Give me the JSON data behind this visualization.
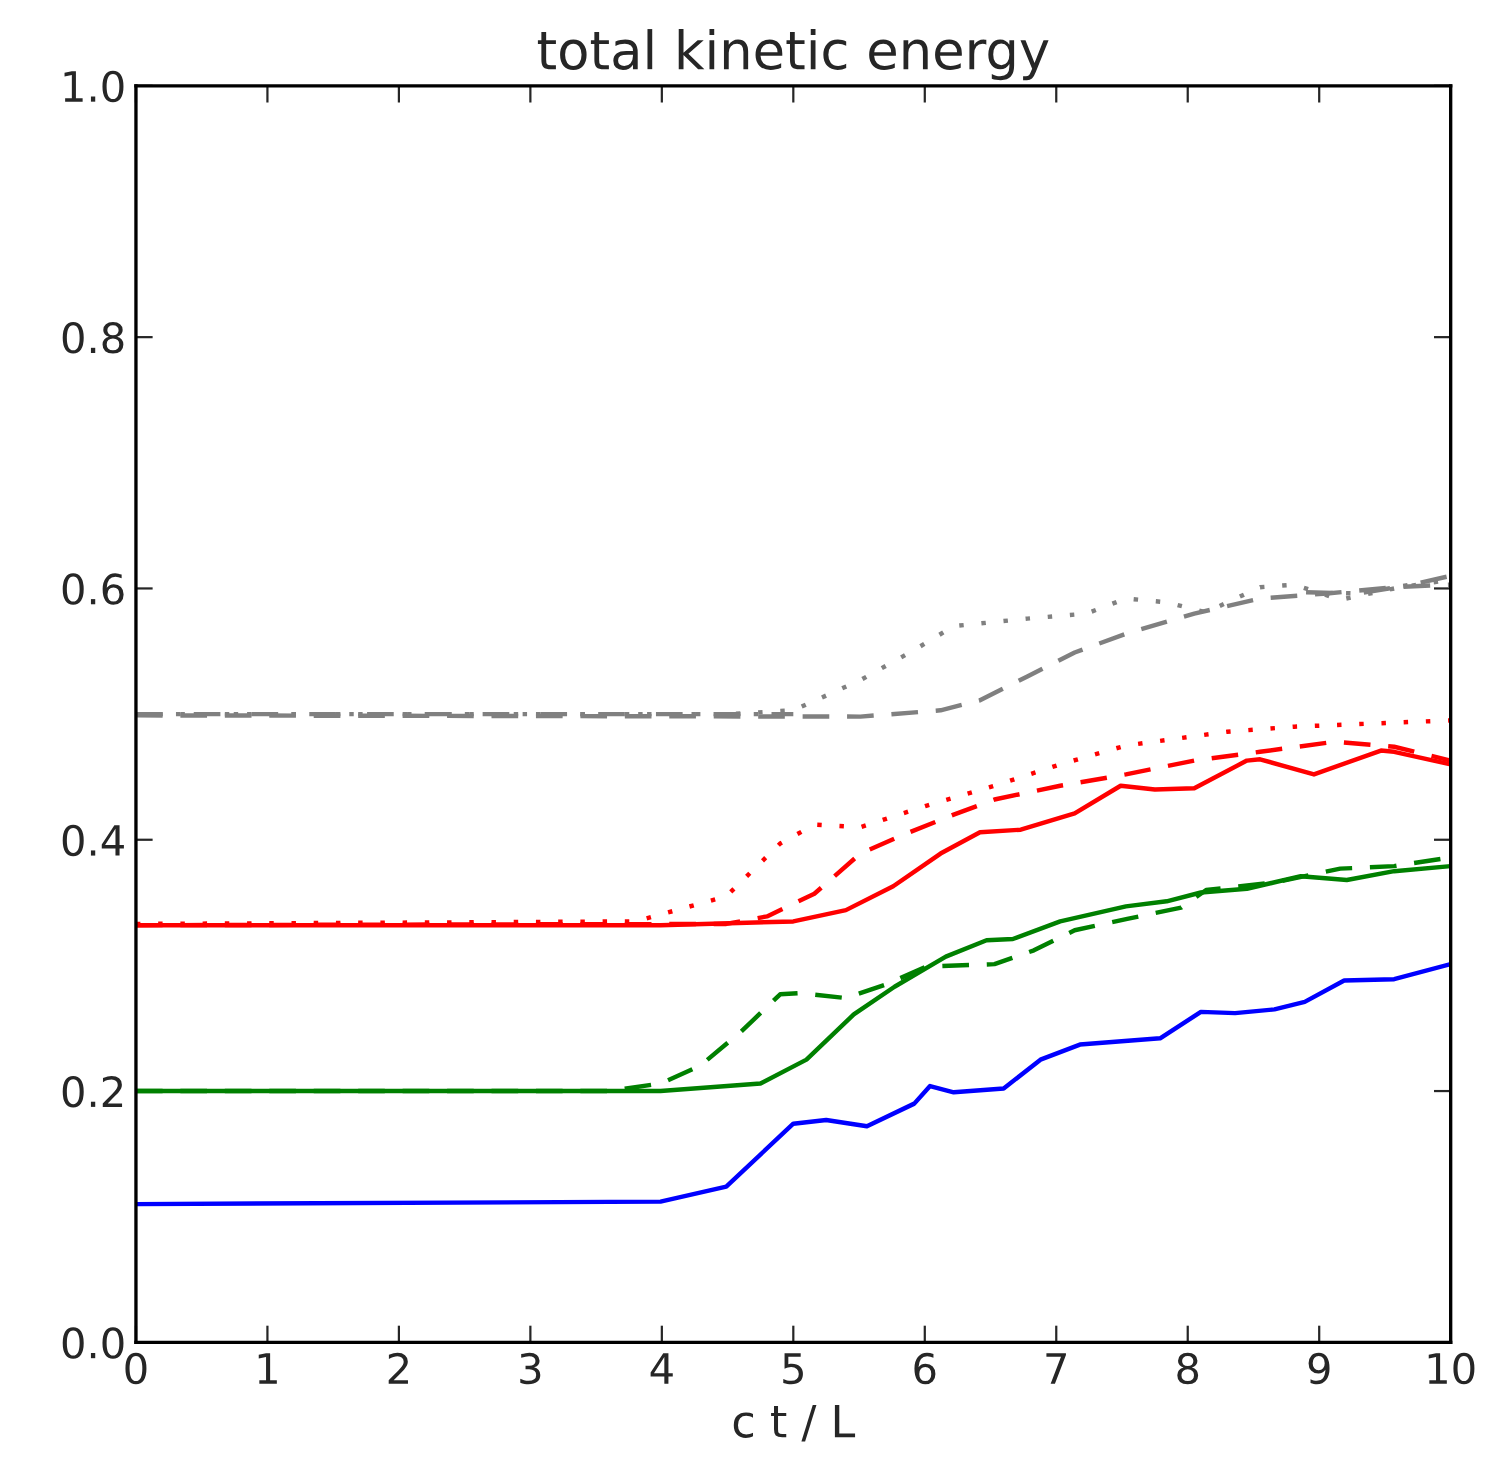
{
  "chart_data": {
    "type": "line",
    "title": "total kinetic energy",
    "xlabel": "c t / L",
    "xlim": [
      0,
      10
    ],
    "ylim": [
      0,
      1.0
    ],
    "xticks": [
      0,
      1,
      2,
      3,
      4,
      5,
      6,
      7,
      8,
      9,
      10
    ],
    "yticks": [
      {
        "value": 0,
        "label": "0.0"
      },
      {
        "value": 0.2,
        "label": "0.2"
      },
      {
        "value": 0.4,
        "label": "0.4"
      },
      {
        "value": 0.6,
        "label": "0.6"
      },
      {
        "value": 0.8,
        "label": "0.8"
      },
      {
        "value": 1.0,
        "label": "1.0"
      }
    ],
    "grid": false,
    "legend": false,
    "series": [
      {
        "color": "#0000ff",
        "line_style": "solid",
        "x": [
          0,
          3.99,
          4.49,
          5.0,
          5.25,
          5.56,
          5.92,
          6.04,
          6.22,
          6.6,
          6.88,
          7.18,
          7.79,
          8.1,
          8.36,
          8.66,
          8.89,
          9.19,
          9.57,
          10
        ],
        "values": [
          0.11,
          0.112,
          0.124,
          0.174,
          0.177,
          0.172,
          0.19,
          0.204,
          0.199,
          0.202,
          0.225,
          0.237,
          0.242,
          0.263,
          0.262,
          0.265,
          0.271,
          0.288,
          0.289,
          0.301
        ]
      },
      {
        "color": "#008000",
        "line_style": "solid",
        "x": [
          0,
          3.99,
          4.75,
          5.1,
          5.46,
          5.77,
          6.16,
          6.47,
          6.67,
          7.03,
          7.53,
          7.84,
          8.1,
          8.45,
          8.86,
          9.21,
          9.57,
          10
        ],
        "values": [
          0.2,
          0.2,
          0.206,
          0.225,
          0.261,
          0.283,
          0.307,
          0.32,
          0.321,
          0.335,
          0.347,
          0.351,
          0.358,
          0.361,
          0.371,
          0.368,
          0.375,
          0.379
        ]
      },
      {
        "color": "#008000",
        "line_style": "dashed",
        "x": [
          0,
          3.6,
          3.99,
          4.29,
          4.6,
          4.9,
          5.05,
          5.4,
          5.71,
          6.01,
          6.53,
          6.83,
          7.14,
          7.54,
          7.95,
          8.14,
          8.66,
          9.16,
          9.57,
          10
        ],
        "values": [
          0.2,
          0.2,
          0.206,
          0.22,
          0.247,
          0.277,
          0.278,
          0.274,
          0.285,
          0.299,
          0.301,
          0.312,
          0.328,
          0.337,
          0.346,
          0.36,
          0.366,
          0.377,
          0.379,
          0.386
        ]
      },
      {
        "color": "#ff0000",
        "line_style": "solid",
        "x": [
          0,
          3.99,
          5.0,
          5.4,
          5.76,
          6.12,
          6.42,
          6.73,
          7.14,
          7.49,
          7.75,
          8.05,
          8.45,
          8.55,
          8.96,
          9.47,
          9.57,
          10
        ],
        "values": [
          0.332,
          0.332,
          0.335,
          0.344,
          0.363,
          0.389,
          0.406,
          0.408,
          0.421,
          0.443,
          0.44,
          0.441,
          0.463,
          0.464,
          0.452,
          0.471,
          0.47,
          0.46
        ]
      },
      {
        "color": "#ff0000",
        "line_style": "dashed",
        "x": [
          0,
          4.49,
          4.8,
          5.16,
          5.51,
          5.86,
          6.22,
          6.53,
          7.03,
          7.53,
          8.05,
          8.55,
          9.12,
          9.57,
          10
        ],
        "values": [
          0.332,
          0.333,
          0.339,
          0.357,
          0.389,
          0.405,
          0.42,
          0.432,
          0.443,
          0.452,
          0.463,
          0.47,
          0.478,
          0.474,
          0.463
        ]
      },
      {
        "color": "#ff0000",
        "line_style": "dotted",
        "x": [
          0,
          3.8,
          4.49,
          4.9,
          5.16,
          5.51,
          6.01,
          6.53,
          7.03,
          7.53,
          8.3,
          8.81,
          10
        ],
        "values": [
          0.333,
          0.335,
          0.355,
          0.397,
          0.412,
          0.41,
          0.427,
          0.443,
          0.46,
          0.475,
          0.486,
          0.49,
          0.495
        ]
      },
      {
        "color": "#808080",
        "line_style": "dashed",
        "x": [
          0,
          5.51,
          6.12,
          6.42,
          6.78,
          7.14,
          7.53,
          8.05,
          8.55,
          9.06,
          9.57,
          10
        ],
        "values": [
          0.499,
          0.498,
          0.503,
          0.511,
          0.53,
          0.549,
          0.564,
          0.58,
          0.592,
          0.596,
          0.601,
          0.603
        ]
      },
      {
        "color": "#808080",
        "line_style": "dotted",
        "x": [
          0,
          4.5,
          5.0,
          5.51,
          5.92,
          6.22,
          6.78,
          7.23,
          7.53,
          7.84,
          8.14,
          8.55,
          8.81,
          9.16,
          9.57,
          10
        ],
        "values": [
          0.5,
          0.5,
          0.503,
          0.527,
          0.551,
          0.57,
          0.576,
          0.58,
          0.592,
          0.589,
          0.581,
          0.601,
          0.603,
          0.591,
          0.6,
          0.607
        ]
      },
      {
        "color": "#808080",
        "line_style": "dashdot",
        "x": [
          0,
          5.0,
          5.5,
          8.9,
          9.3,
          9.7,
          10
        ],
        "values": [
          0.5,
          0.5,
          null,
          0.597,
          0.596,
          0.603,
          0.61
        ]
      }
    ]
  }
}
